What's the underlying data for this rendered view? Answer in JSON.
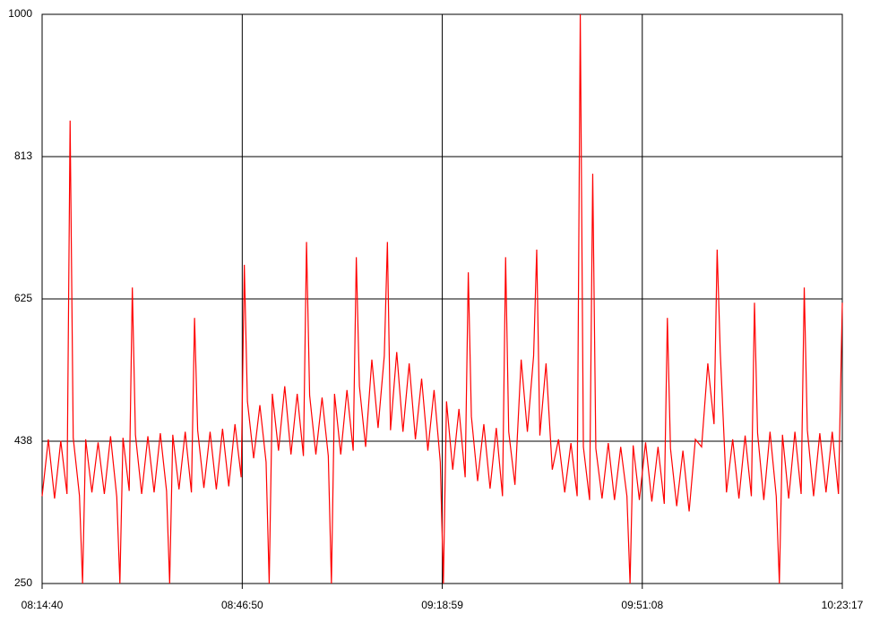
{
  "chart_data": {
    "type": "line",
    "color": "#ff0000",
    "grid": true,
    "x": [
      "08:14:40",
      "08:15:40",
      "08:16:40",
      "08:17:40",
      "08:18:40",
      "08:19:10",
      "08:19:40",
      "08:20:40",
      "08:21:10",
      "08:21:40",
      "08:22:40",
      "08:23:40",
      "08:24:40",
      "08:25:40",
      "08:26:40",
      "08:27:10",
      "08:27:40",
      "08:28:40",
      "08:29:10",
      "08:29:40",
      "08:30:40",
      "08:31:40",
      "08:32:40",
      "08:33:40",
      "08:34:40",
      "08:35:10",
      "08:35:40",
      "08:36:40",
      "08:37:40",
      "08:38:40",
      "08:39:10",
      "08:39:40",
      "08:40:40",
      "08:41:40",
      "08:42:40",
      "08:43:40",
      "08:44:40",
      "08:45:40",
      "08:46:40",
      "08:47:10",
      "08:47:40",
      "08:48:40",
      "08:49:40",
      "08:50:40",
      "08:51:10",
      "08:51:40",
      "08:52:40",
      "08:53:40",
      "08:54:40",
      "08:55:40",
      "08:56:40",
      "08:57:10",
      "08:57:40",
      "08:58:40",
      "08:59:40",
      "09:00:40",
      "09:01:10",
      "09:01:40",
      "09:02:40",
      "09:03:40",
      "09:04:40",
      "09:05:10",
      "09:05:40",
      "09:06:40",
      "09:07:40",
      "09:08:40",
      "09:09:40",
      "09:10:10",
      "09:10:40",
      "09:11:40",
      "09:12:40",
      "09:13:40",
      "09:14:40",
      "09:15:40",
      "09:16:40",
      "09:17:40",
      "09:18:40",
      "09:19:10",
      "09:19:40",
      "09:20:40",
      "09:21:40",
      "09:22:40",
      "09:23:10",
      "09:23:40",
      "09:24:40",
      "09:25:40",
      "09:26:40",
      "09:27:40",
      "09:28:40",
      "09:29:10",
      "09:29:40",
      "09:30:40",
      "09:31:40",
      "09:32:40",
      "09:33:40",
      "09:34:10",
      "09:34:40",
      "09:35:40",
      "09:36:40",
      "09:37:40",
      "09:38:40",
      "09:39:40",
      "09:40:40",
      "09:41:10",
      "09:41:40",
      "09:42:40",
      "09:43:10",
      "09:43:40",
      "09:44:40",
      "09:45:40",
      "09:46:40",
      "09:47:40",
      "09:48:40",
      "09:49:10",
      "09:49:40",
      "09:50:40",
      "09:51:40",
      "09:52:40",
      "09:53:40",
      "09:54:40",
      "09:55:10",
      "09:55:40",
      "09:56:40",
      "09:57:40",
      "09:58:40",
      "09:59:40",
      "10:00:40",
      "10:01:40",
      "10:02:40",
      "10:03:10",
      "10:03:40",
      "10:04:40",
      "10:05:40",
      "10:06:40",
      "10:07:40",
      "10:08:40",
      "10:09:10",
      "10:09:40",
      "10:10:40",
      "10:11:40",
      "10:12:40",
      "10:13:10",
      "10:13:40",
      "10:14:40",
      "10:15:40",
      "10:16:40",
      "10:17:10",
      "10:17:40",
      "10:18:40",
      "10:19:40",
      "10:20:40",
      "10:21:40",
      "10:22:40",
      "10:23:17"
    ],
    "values": [
      365,
      440,
      362,
      438,
      368,
      860,
      442,
      366,
      250,
      440,
      370,
      436,
      368,
      444,
      364,
      250,
      442,
      372,
      640,
      446,
      368,
      444,
      370,
      448,
      372,
      250,
      446,
      374,
      450,
      370,
      600,
      452,
      376,
      450,
      374,
      454,
      378,
      460,
      390,
      670,
      490,
      415,
      485,
      410,
      250,
      500,
      425,
      510,
      420,
      500,
      418,
      700,
      498,
      420,
      495,
      418,
      250,
      500,
      420,
      505,
      425,
      680,
      510,
      430,
      545,
      455,
      550,
      700,
      452,
      555,
      450,
      540,
      440,
      520,
      425,
      505,
      410,
      250,
      490,
      400,
      480,
      390,
      660,
      470,
      385,
      460,
      375,
      455,
      365,
      680,
      450,
      380,
      545,
      450,
      550,
      690,
      445,
      540,
      400,
      440,
      370,
      435,
      365,
      1000,
      430,
      360,
      790,
      428,
      362,
      435,
      360,
      430,
      365,
      250,
      432,
      360,
      436,
      358,
      430,
      355,
      600,
      428,
      352,
      425,
      345,
      440,
      430,
      540,
      460,
      690,
      555,
      370,
      440,
      362,
      445,
      365,
      620,
      448,
      360,
      450,
      365,
      250,
      446,
      362,
      450,
      368,
      640,
      452,
      365,
      448,
      370,
      450,
      368,
      620
    ],
    "xlim": [
      "08:14:40",
      "10:23:17"
    ],
    "xticks": [
      "08:14:40",
      "08:46:50",
      "09:18:59",
      "09:51:08",
      "10:23:17"
    ],
    "ylim": [
      250,
      1000
    ],
    "yticks": [
      250,
      {
        "value": 437.5,
        "label": "438"
      },
      625,
      {
        "value": 812.5,
        "label": "813"
      },
      1000
    ]
  }
}
